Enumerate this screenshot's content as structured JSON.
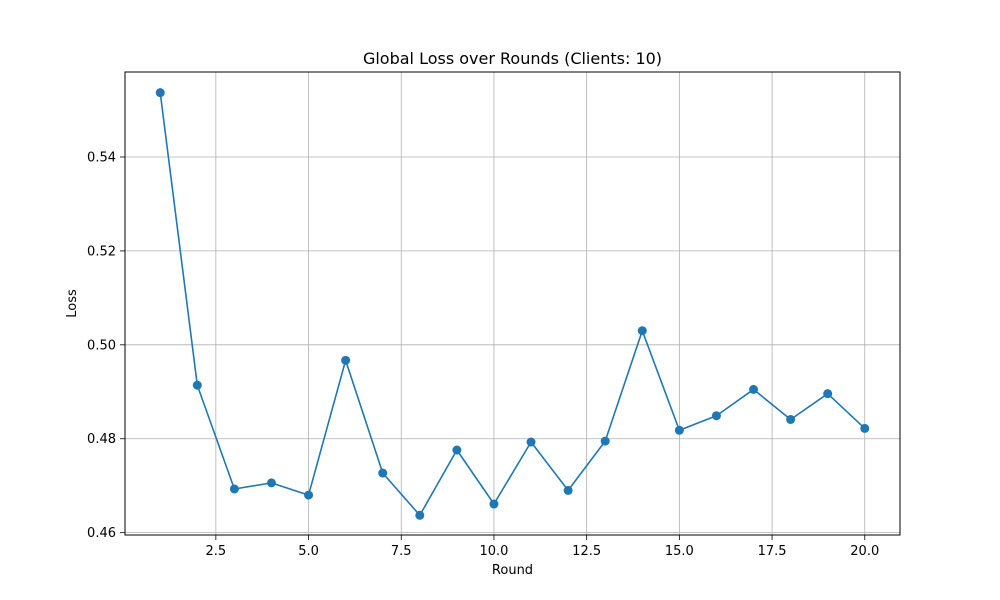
{
  "chart_data": {
    "type": "line",
    "title": "Global Loss over Rounds (Clients: 10)",
    "xlabel": "Round",
    "ylabel": "Loss",
    "xlim": [
      0.05,
      20.95
    ],
    "ylim": [
      0.4595,
      0.5581
    ],
    "xticks": [
      "2.5",
      "5.0",
      "7.5",
      "10.0",
      "12.5",
      "15.0",
      "17.5",
      "20.0"
    ],
    "yticks": [
      "0.46",
      "0.48",
      "0.50",
      "0.52",
      "0.54"
    ],
    "grid": true,
    "series": [
      {
        "color": "#1f77b4",
        "marker": "circle",
        "x": [
          1,
          2,
          3,
          4,
          5,
          6,
          7,
          8,
          9,
          10,
          11,
          12,
          13,
          14,
          15,
          16,
          17,
          18,
          19,
          20
        ],
        "y": [
          0.5537,
          0.4914,
          0.4693,
          0.4706,
          0.468,
          0.4967,
          0.4727,
          0.4637,
          0.4776,
          0.4661,
          0.4793,
          0.469,
          0.4795,
          0.503,
          0.4818,
          0.4849,
          0.4905,
          0.4841,
          0.4896,
          0.4822
        ]
      }
    ]
  }
}
